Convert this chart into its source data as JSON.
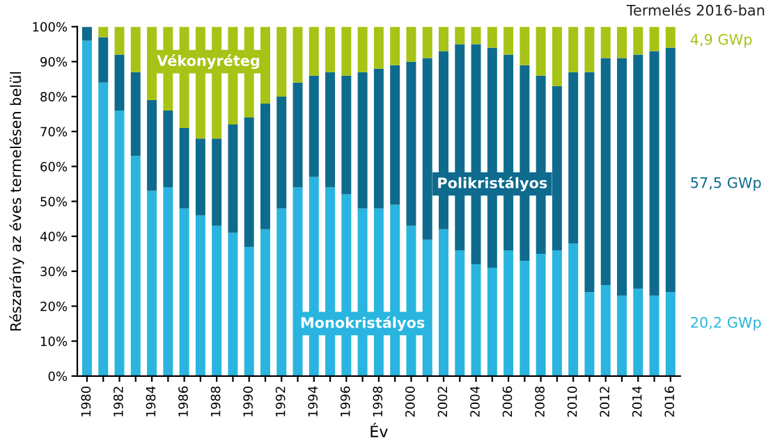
{
  "chart_data": {
    "type": "bar",
    "stacked": true,
    "xlabel": "Év",
    "ylabel": "Részarány az éves termelésen belül",
    "categories": [
      "1980",
      null,
      "1982",
      null,
      "1984",
      null,
      "1986",
      null,
      "1988",
      null,
      "1990",
      null,
      "1992",
      null,
      "1994",
      null,
      "1996",
      null,
      "1998",
      null,
      "2000",
      null,
      "2002",
      null,
      "2004",
      null,
      "2006",
      null,
      "2008",
      null,
      "2010",
      null,
      "2012",
      null,
      "2014",
      null,
      "2016"
    ],
    "series": [
      {
        "name": "Monokristályos",
        "color": "#29b5df",
        "values": [
          96,
          84,
          76,
          63,
          53,
          54,
          48,
          46,
          43,
          41,
          37,
          42,
          48,
          54,
          57,
          54,
          52,
          48,
          48,
          49,
          43,
          39,
          42,
          36,
          32,
          31,
          36,
          33,
          35,
          36,
          38,
          24,
          26,
          23,
          25,
          23,
          24
        ]
      },
      {
        "name": "Polikristályos",
        "color": "#0e6b8e",
        "values": [
          4,
          13,
          16,
          24,
          26,
          22,
          23,
          22,
          25,
          31,
          37,
          36,
          32,
          30,
          29,
          33,
          34,
          39,
          40,
          40,
          47,
          52,
          51,
          59,
          63,
          63,
          56,
          56,
          51,
          47,
          49,
          63,
          65,
          68,
          67,
          70,
          70
        ]
      },
      {
        "name": "Vékonyréteg",
        "color": "#a7c316",
        "values": [
          0,
          3,
          8,
          13,
          21,
          24,
          29,
          32,
          32,
          28,
          26,
          22,
          20,
          16,
          14,
          13,
          14,
          13,
          12,
          11,
          10,
          9,
          7,
          5,
          5,
          6,
          8,
          11,
          14,
          17,
          13,
          13,
          9,
          9,
          8,
          7,
          6
        ]
      }
    ],
    "ylim": [
      0,
      100
    ],
    "yticks": [
      {
        "value": 0,
        "label": "0%"
      },
      {
        "value": 10,
        "label": "10%"
      },
      {
        "value": 20,
        "label": "20%"
      },
      {
        "value": 30,
        "label": "30%"
      },
      {
        "value": 40,
        "label": "40%"
      },
      {
        "value": 50,
        "label": "50%"
      },
      {
        "value": 60,
        "label": "60%"
      },
      {
        "value": 70,
        "label": "70%"
      },
      {
        "value": 80,
        "label": "80%"
      },
      {
        "value": 90,
        "label": "90%"
      },
      {
        "value": 100,
        "label": "100%"
      }
    ],
    "annotations": [
      "Termelés 2016-ban",
      "20,2 GWp",
      "57,5 GWp",
      "4,9 GWp"
    ],
    "grid": false,
    "legend": false
  }
}
